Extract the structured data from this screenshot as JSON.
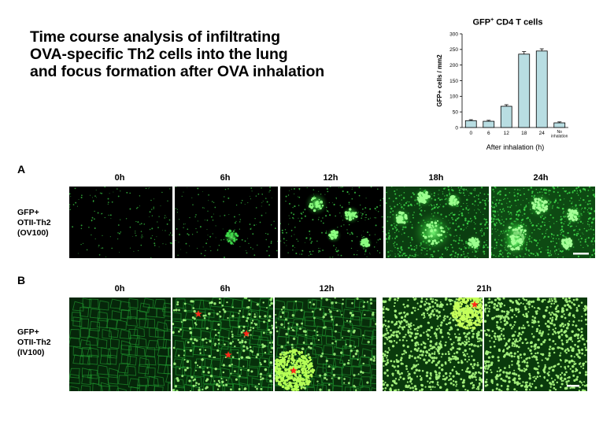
{
  "title_lines": [
    "Time course analysis of infiltrating",
    "OVA-specific Th2 cells into the lung",
    "and focus formation after OVA inhalation"
  ],
  "chart_title": {
    "main": "GFP",
    "sup": "+",
    "rest": " CD4 T cells"
  },
  "chart_data": {
    "type": "bar",
    "title": "GFP+ CD4 T cells",
    "xlabel": "After inhalation (h)",
    "ylabel": "GFP+ cells / mm2",
    "ylim": [
      0,
      300
    ],
    "yticks": [
      0,
      50,
      100,
      150,
      200,
      250,
      300
    ],
    "categories": [
      "0",
      "6",
      "12",
      "18",
      "24",
      "No inhalation"
    ],
    "category_lines": [
      [
        "0"
      ],
      [
        "6"
      ],
      [
        "12"
      ],
      [
        "18"
      ],
      [
        "24"
      ],
      [
        "No",
        "inhalation"
      ]
    ],
    "values": [
      22,
      20,
      68,
      235,
      245,
      15
    ],
    "errors": [
      3,
      3,
      5,
      8,
      7,
      3
    ],
    "bar_color": "#b8dde2"
  },
  "panel_a": {
    "label": "A",
    "columns": [
      "0h",
      "6h",
      "12h",
      "18h",
      "24h"
    ],
    "row_label": [
      "GFP+",
      "OTII-Th2",
      "(OV100)"
    ]
  },
  "panel_b": {
    "label": "B",
    "columns": [
      "0h",
      "6h",
      "12h",
      "21h"
    ],
    "row_label": [
      "GFP+",
      "OTII-Th2",
      "(IV100)"
    ]
  },
  "colors": {
    "fluorescence": "#3fd94a",
    "marker": "#ff2a1a"
  }
}
